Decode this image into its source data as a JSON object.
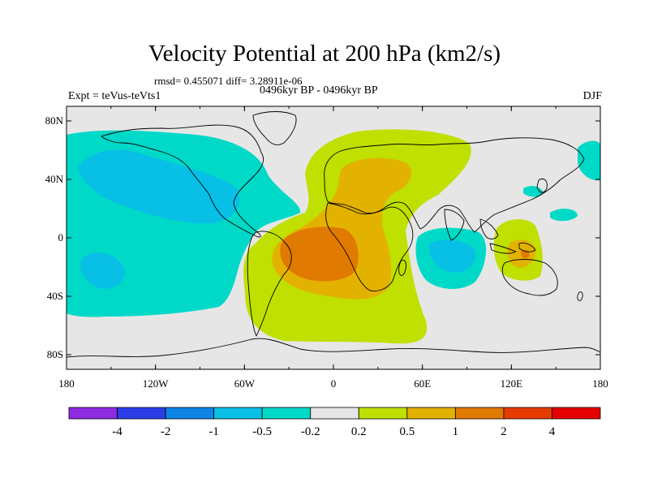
{
  "header": {
    "title": "Velocity Potential at 200 hPa (km2/s)",
    "rmsd_line": "rmsd= 0.455071  diff= 3.28911e-06",
    "experiment": "Expt = teVus-teVts1",
    "period": "0496kyr BP - 0496kyr BP",
    "season": "DJF"
  },
  "map": {
    "lon_labels": [
      "180",
      "120W",
      "60W",
      "0",
      "60E",
      "120E",
      "180"
    ],
    "lat_labels": [
      "80N",
      "40N",
      "0",
      "40S",
      "80S"
    ],
    "background_color": "#e6e6e6",
    "contour_regions": [
      {
        "name": "negative-pacific-north-america",
        "level": "-0.5",
        "color": "#00d9c7"
      },
      {
        "name": "negative-north-pacific-core",
        "level": "-1",
        "color": "#08bfe6"
      },
      {
        "name": "negative-south-pacific-core",
        "level": "-1",
        "color": "#08bfe6"
      },
      {
        "name": "negative-indian-ocean",
        "level": "-0.5",
        "color": "#00d9c7"
      },
      {
        "name": "negative-indian-ocean-core",
        "level": "-1",
        "color": "#08bfe6"
      },
      {
        "name": "positive-atlantic-africa-europe",
        "level": "0.2",
        "color": "#bfe000"
      },
      {
        "name": "positive-africa-europe",
        "level": "0.5",
        "color": "#e3b200"
      },
      {
        "name": "positive-south-atlantic-core",
        "level": "1",
        "color": "#e07a00"
      },
      {
        "name": "positive-indonesia",
        "level": "0.2",
        "color": "#bfe000"
      },
      {
        "name": "positive-indonesia-core",
        "level": "0.5",
        "color": "#e3b200"
      }
    ]
  },
  "colorbar": {
    "colors": [
      "#8e2be0",
      "#2a3de6",
      "#0d84e6",
      "#08bfe6",
      "#00d9c7",
      "#e6e6e6",
      "#bfe000",
      "#e3b200",
      "#e07a00",
      "#e63c00",
      "#e60000"
    ],
    "labels": [
      "-4",
      "-2",
      "-1",
      "-0.5",
      "-0.2",
      "0.2",
      "0.5",
      "1",
      "2",
      "4"
    ]
  }
}
